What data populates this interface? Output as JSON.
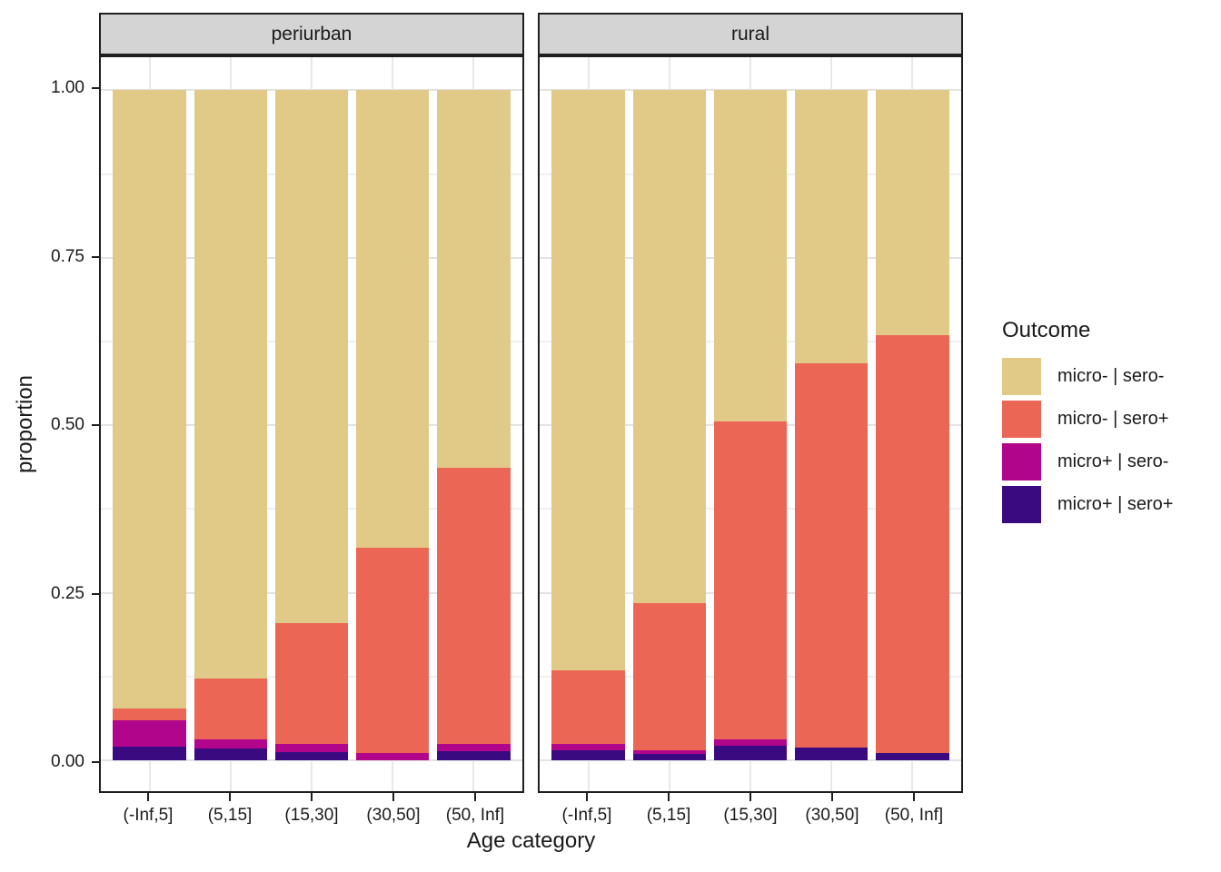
{
  "chart_data": {
    "type": "bar",
    "variant": "stacked_proportion_faceted",
    "title": "",
    "xlabel": "Age category",
    "ylabel": "proportion",
    "ylim": [
      0,
      1
    ],
    "yticks": [
      0,
      0.25,
      0.5,
      0.75,
      1
    ],
    "ytick_labels": [
      "0.00",
      "0.25",
      "0.50",
      "0.75",
      "1.00"
    ],
    "minor_gridlines": [
      0.125,
      0.375,
      0.625,
      0.875
    ],
    "grid": "on",
    "legend_position": "right",
    "categories": [
      "(-Inf,5]",
      "(5,15]",
      "(15,30]",
      "(30,50]",
      "(50, Inf]"
    ],
    "stack_order_bottom_to_top": [
      "micro+ | sero+",
      "micro+ | sero-",
      "micro- | sero+",
      "micro- | sero-"
    ],
    "outcome_colors": {
      "micro- | sero-": "#E1C987",
      "micro- | sero+": "#EC6656",
      "micro+ | sero-": "#B1058C",
      "micro+ | sero+": "#3A0B80"
    },
    "legend": {
      "title": "Outcome",
      "entries": [
        {
          "label": "micro- | sero-",
          "color": "#E1C987"
        },
        {
          "label": "micro- | sero+",
          "color": "#EC6656"
        },
        {
          "label": "micro+ | sero-",
          "color": "#B1058C"
        },
        {
          "label": "micro+ | sero+",
          "color": "#3A0B80"
        }
      ]
    },
    "facets": [
      {
        "label": "periurban",
        "series": [
          {
            "name": "micro+ | sero+",
            "values": [
              0.02,
              0.018,
              0.012,
              0.0,
              0.014
            ]
          },
          {
            "name": "micro+ | sero-",
            "values": [
              0.04,
              0.014,
              0.013,
              0.011,
              0.011
            ]
          },
          {
            "name": "micro- | sero+",
            "values": [
              0.017,
              0.09,
              0.18,
              0.306,
              0.411
            ]
          },
          {
            "name": "micro- | sero-",
            "values": [
              0.923,
              0.878,
              0.795,
              0.683,
              0.564
            ]
          }
        ]
      },
      {
        "label": "rural",
        "series": [
          {
            "name": "micro+ | sero+",
            "values": [
              0.015,
              0.01,
              0.022,
              0.019,
              0.011
            ]
          },
          {
            "name": "micro+ | sero-",
            "values": [
              0.009,
              0.005,
              0.01,
              0.0,
              0.0
            ]
          },
          {
            "name": "micro- | sero+",
            "values": [
              0.11,
              0.22,
              0.474,
              0.573,
              0.624
            ]
          },
          {
            "name": "micro- | sero-",
            "values": [
              0.866,
              0.765,
              0.494,
              0.408,
              0.365
            ]
          }
        ]
      }
    ]
  },
  "theme": {
    "strip_bg": "#D4D4D4",
    "panel_border": "#1F1F1F",
    "grid_major": "#E3E3E3",
    "grid_minor": "#F0F0F0",
    "grid_vertical": "#E8E8E8",
    "text_color": "#1A1A1A"
  }
}
